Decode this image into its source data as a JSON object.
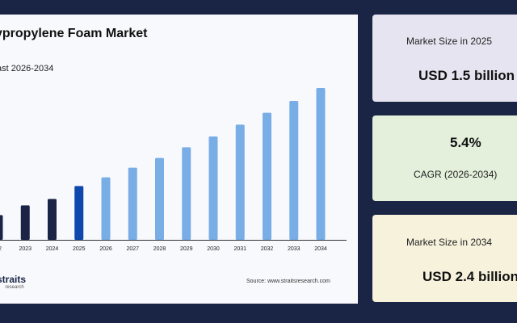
{
  "title": "ypropylene Foam Market",
  "subtitle": "ast 2026-2034",
  "source": "Source: www.straitsresearch.com",
  "logo": {
    "name": "straits",
    "sub": "research"
  },
  "colors": {
    "historic": "#1b2447",
    "base": "#0f47ad",
    "forecast": "#79ade6",
    "axis": "#333333"
  },
  "chart_data": {
    "type": "bar",
    "categories": [
      "22",
      "2023",
      "2024",
      "2025",
      "2026",
      "2027",
      "2028",
      "2029",
      "2030",
      "2031",
      "2032",
      "2033",
      "2034"
    ],
    "values": [
      1.23,
      1.32,
      1.38,
      1.5,
      1.58,
      1.67,
      1.76,
      1.86,
      1.96,
      2.07,
      2.18,
      2.29,
      2.41
    ],
    "bar_kind": [
      "historic",
      "historic",
      "historic",
      "base",
      "forecast",
      "forecast",
      "forecast",
      "forecast",
      "forecast",
      "forecast",
      "forecast",
      "forecast",
      "forecast"
    ],
    "ylim": [
      1.0,
      2.5
    ],
    "xlabel": "",
    "ylabel": "",
    "grid": false
  },
  "cards": [
    {
      "label": "Market Size in 2025",
      "value": "USD 1.5 billion"
    },
    {
      "label": "CAGR (2026-2034)",
      "value": "5.4%"
    },
    {
      "label": "Market Size in 2034",
      "value": "USD 2.4 billion"
    }
  ]
}
